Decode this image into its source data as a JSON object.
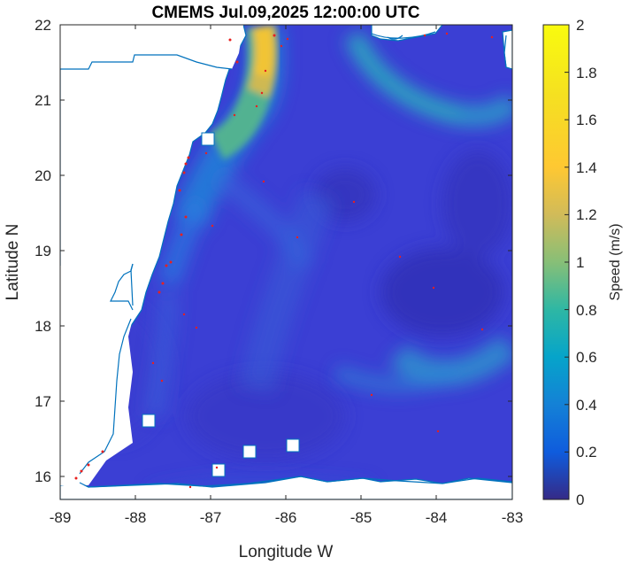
{
  "title": "CMEMS Jul.09,2025 12:00:00 UTC",
  "map": {
    "xlabel": "Longitude W",
    "ylabel": "Latitude N",
    "xlim": [
      -89,
      -83
    ],
    "ylim": [
      15.7,
      22
    ],
    "x_ticks": [
      {
        "value": -89,
        "label": "-89"
      },
      {
        "value": -88,
        "label": "-88"
      },
      {
        "value": -87,
        "label": "-87"
      },
      {
        "value": -86,
        "label": "-86"
      },
      {
        "value": -85,
        "label": "-85"
      },
      {
        "value": -84,
        "label": "-84"
      },
      {
        "value": -83,
        "label": "-83"
      }
    ],
    "y_ticks": [
      {
        "value": 16,
        "label": "16"
      },
      {
        "value": 17,
        "label": "17"
      },
      {
        "value": 18,
        "label": "18"
      },
      {
        "value": 19,
        "label": "19"
      },
      {
        "value": 20,
        "label": "20"
      },
      {
        "value": 21,
        "label": "21"
      },
      {
        "value": 22,
        "label": "22"
      }
    ],
    "field": "Speed (m/s)",
    "colors": {
      "land": "#ffffff",
      "coastline": "#0072bd",
      "markers": "#e8201f",
      "background_field": "#3b3fd4"
    }
  },
  "colorbar": {
    "label": "Speed (m/s)",
    "range": [
      0,
      2
    ],
    "colormap": "parula",
    "ticks": [
      {
        "value": 0,
        "label": "0"
      },
      {
        "value": 0.2,
        "label": "0.2"
      },
      {
        "value": 0.4,
        "label": "0.4"
      },
      {
        "value": 0.6,
        "label": "0.6"
      },
      {
        "value": 0.8,
        "label": "0.8"
      },
      {
        "value": 1,
        "label": "1"
      },
      {
        "value": 1.2,
        "label": "1.2"
      },
      {
        "value": 1.4,
        "label": "1.4"
      },
      {
        "value": 1.6,
        "label": "1.6"
      },
      {
        "value": 1.8,
        "label": "1.8"
      },
      {
        "value": 2,
        "label": "2"
      }
    ]
  }
}
